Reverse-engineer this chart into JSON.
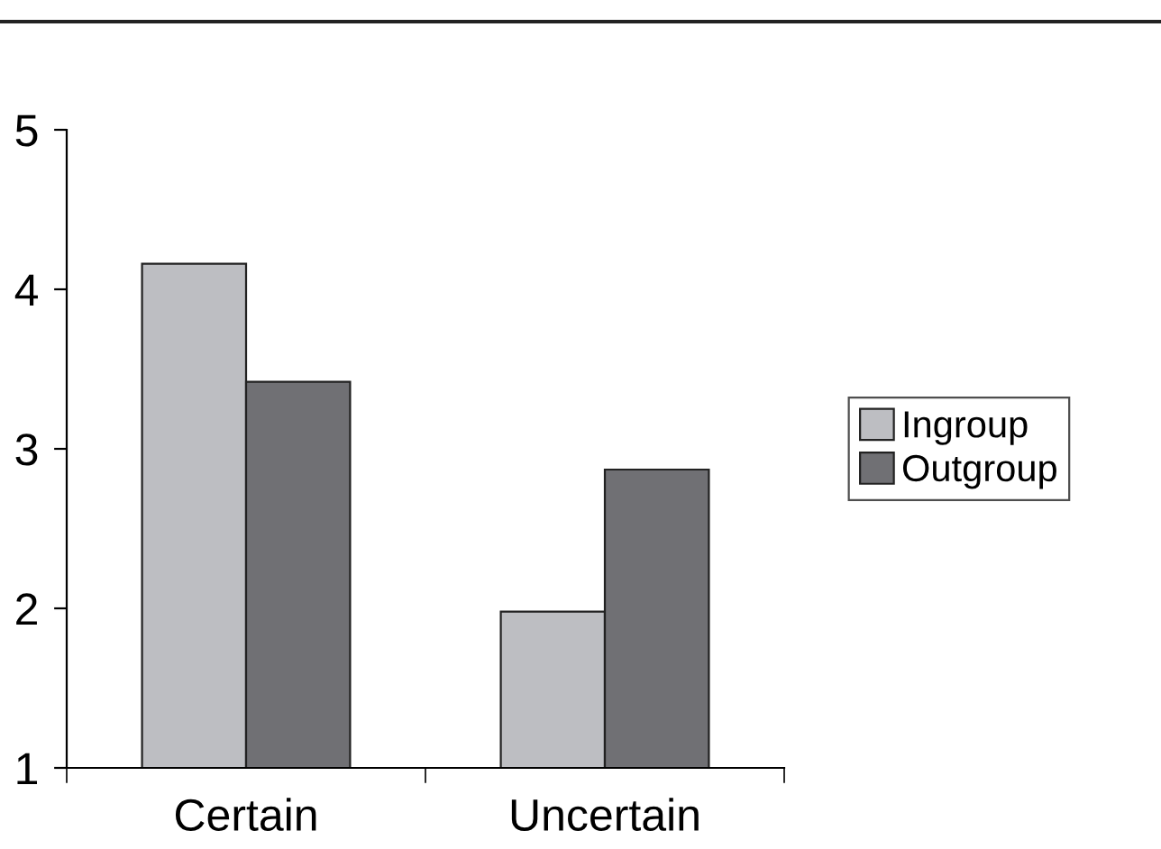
{
  "chart_data": {
    "type": "bar",
    "categories": [
      "Certain",
      "Uncertain"
    ],
    "series": [
      {
        "name": "Ingroup",
        "color": "#bdbec2",
        "values": [
          4.16,
          1.98
        ]
      },
      {
        "name": "Outgroup",
        "color": "#707074",
        "values": [
          3.42,
          2.87
        ]
      }
    ],
    "ylim": [
      1,
      5
    ],
    "yticks": [
      1,
      2,
      3,
      4,
      5
    ],
    "grid": false,
    "legend": "right"
  }
}
